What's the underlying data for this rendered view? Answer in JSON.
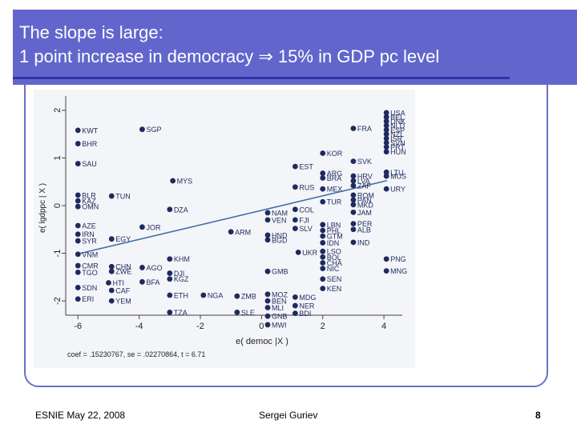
{
  "slide": {
    "title_line1": "The slope is large:",
    "title_line2": "1 point increase in democracy ⇒ 15% in GDP pc level",
    "footer_left": "ESNIE May 22, 2008",
    "footer_center": "Sergei Guriev",
    "page_number": "8"
  },
  "colors": {
    "title_bg": "#6266cc",
    "marker": "#1f2a5e",
    "fit_line": "#3f6fa8"
  },
  "chart_data": {
    "type": "scatter",
    "title": "",
    "xlabel": "e( democ |X )",
    "ylabel": "e( lgdppc | X )",
    "xlim": [
      -6.4,
      4.6
    ],
    "ylim": [
      -2.3,
      2.3
    ],
    "x_ticks": [
      -6,
      -4,
      -2,
      0,
      2,
      4
    ],
    "y_ticks": [
      -2,
      -1,
      0,
      1,
      2
    ],
    "grid": false,
    "note": "coef = .15230767, se = .02270864, t = 6.71",
    "fit": {
      "intercept": -0.1,
      "slope": 0.1523
    },
    "points": [
      {
        "x": 4.08,
        "y": 1.95,
        "label": "USA"
      },
      {
        "x": 4.08,
        "y": 1.86,
        "label": "BEL"
      },
      {
        "x": 4.08,
        "y": 1.77,
        "label": "DNK"
      },
      {
        "x": 4.08,
        "y": 1.68,
        "label": "NLD"
      },
      {
        "x": 4.08,
        "y": 1.59,
        "label": "ESP"
      },
      {
        "x": 4.08,
        "y": 1.5,
        "label": "NZL"
      },
      {
        "x": 4.08,
        "y": 1.41,
        "label": "ISR"
      },
      {
        "x": 4.08,
        "y": 1.32,
        "label": "SVN"
      },
      {
        "x": 4.08,
        "y": 1.23,
        "label": "PRT"
      },
      {
        "x": 4.08,
        "y": 1.13,
        "label": "HUN"
      },
      {
        "x": 4.08,
        "y": 0.7,
        "label": "LTU"
      },
      {
        "x": 4.08,
        "y": 0.62,
        "label": "MUS"
      },
      {
        "x": 4.08,
        "y": 0.35,
        "label": "URY"
      },
      {
        "x": 4.08,
        "y": -1.12,
        "label": "PNG"
      },
      {
        "x": 4.08,
        "y": -1.37,
        "label": "MNG"
      },
      {
        "x": 3.0,
        "y": 1.62,
        "label": "FRA"
      },
      {
        "x": 3.0,
        "y": 0.93,
        "label": "SVK"
      },
      {
        "x": 3.0,
        "y": 0.62,
        "label": "HRV"
      },
      {
        "x": 3.0,
        "y": 0.52,
        "label": "LVA"
      },
      {
        "x": 3.0,
        "y": 0.42,
        "label": "ZAF"
      },
      {
        "x": 3.0,
        "y": 0.22,
        "label": "ROM"
      },
      {
        "x": 3.0,
        "y": 0.12,
        "label": "PAN"
      },
      {
        "x": 3.0,
        "y": 0.02,
        "label": "MKD"
      },
      {
        "x": 3.0,
        "y": -0.14,
        "label": "JAM"
      },
      {
        "x": 3.0,
        "y": -0.38,
        "label": "PER"
      },
      {
        "x": 3.0,
        "y": -0.5,
        "label": "ALB"
      },
      {
        "x": 3.0,
        "y": -0.77,
        "label": "IND"
      },
      {
        "x": 2.0,
        "y": 1.1,
        "label": "KOR"
      },
      {
        "x": 2.0,
        "y": 0.68,
        "label": "ARG"
      },
      {
        "x": 2.0,
        "y": 0.58,
        "label": "BRA"
      },
      {
        "x": 2.0,
        "y": 0.35,
        "label": "MEX"
      },
      {
        "x": 2.0,
        "y": 0.08,
        "label": "TUR"
      },
      {
        "x": 2.0,
        "y": -0.4,
        "label": "LBN"
      },
      {
        "x": 2.0,
        "y": -0.52,
        "label": "PHL"
      },
      {
        "x": 2.0,
        "y": -0.64,
        "label": "GTM"
      },
      {
        "x": 2.0,
        "y": -0.78,
        "label": "IDN"
      },
      {
        "x": 2.0,
        "y": -0.96,
        "label": "LSO"
      },
      {
        "x": 2.0,
        "y": -1.08,
        "label": "BOL"
      },
      {
        "x": 2.0,
        "y": -1.2,
        "label": "CHA"
      },
      {
        "x": 2.0,
        "y": -1.32,
        "label": "NIC"
      },
      {
        "x": 2.0,
        "y": -1.54,
        "label": "SEN"
      },
      {
        "x": 2.0,
        "y": -1.74,
        "label": "KEN"
      },
      {
        "x": 1.1,
        "y": 0.82,
        "label": "EST"
      },
      {
        "x": 1.1,
        "y": 0.39,
        "label": "RUS"
      },
      {
        "x": 1.1,
        "y": -0.08,
        "label": "COL"
      },
      {
        "x": 1.1,
        "y": -0.3,
        "label": "FJI"
      },
      {
        "x": 1.1,
        "y": -0.48,
        "label": "SLV"
      },
      {
        "x": 1.2,
        "y": -0.98,
        "label": "UKR"
      },
      {
        "x": 1.1,
        "y": -1.92,
        "label": "MDG"
      },
      {
        "x": 1.1,
        "y": -2.1,
        "label": "NER"
      },
      {
        "x": 1.1,
        "y": -2.26,
        "label": "BDI"
      },
      {
        "x": 0.2,
        "y": -0.15,
        "label": "NAM"
      },
      {
        "x": 0.2,
        "y": -0.3,
        "label": "VEN"
      },
      {
        "x": 0.2,
        "y": -0.62,
        "label": "HND"
      },
      {
        "x": 0.2,
        "y": -0.72,
        "label": "BGD"
      },
      {
        "x": 0.2,
        "y": -1.38,
        "label": "GMB"
      },
      {
        "x": 0.2,
        "y": -1.86,
        "label": "MOZ"
      },
      {
        "x": 0.2,
        "y": -2.0,
        "label": "BEN"
      },
      {
        "x": 0.2,
        "y": -2.14,
        "label": "MLI"
      },
      {
        "x": 0.2,
        "y": -2.32,
        "label": "GNB"
      },
      {
        "x": 0.2,
        "y": -2.5,
        "label": "MWI"
      },
      {
        "x": -1.0,
        "y": -0.55,
        "label": "ARM"
      },
      {
        "x": -0.8,
        "y": -1.9,
        "label": "ZMB"
      },
      {
        "x": -0.8,
        "y": -2.24,
        "label": "SLE"
      },
      {
        "x": -1.9,
        "y": -1.88,
        "label": "NGA"
      },
      {
        "x": -2.9,
        "y": 0.52,
        "label": "MYS"
      },
      {
        "x": -3.9,
        "y": 1.6,
        "label": "SGP"
      },
      {
        "x": -3.9,
        "y": -0.45,
        "label": "JOR"
      },
      {
        "x": -3.9,
        "y": -1.6,
        "label": "BFA"
      },
      {
        "x": -4.9,
        "y": 0.2,
        "label": "TUN"
      },
      {
        "x": -4.9,
        "y": -0.7,
        "label": "EGY"
      },
      {
        "x": -4.9,
        "y": -1.78,
        "label": "CAF"
      },
      {
        "x": -4.9,
        "y": -2.0,
        "label": "YEM"
      },
      {
        "x": -4.9,
        "y": -1.28,
        "label": "CHN"
      },
      {
        "x": -4.9,
        "y": -1.38,
        "label": "ZWE"
      },
      {
        "x": -5.0,
        "y": -1.62,
        "label": "HTI"
      },
      {
        "x": -3.0,
        "y": -0.08,
        "label": "DZA"
      },
      {
        "x": -3.0,
        "y": -1.12,
        "label": "KHM"
      },
      {
        "x": -3.0,
        "y": -1.42,
        "label": "DJI"
      },
      {
        "x": -3.0,
        "y": -1.54,
        "label": "KGZ"
      },
      {
        "x": -3.0,
        "y": -1.88,
        "label": "ETH"
      },
      {
        "x": -3.0,
        "y": -2.24,
        "label": "TZA"
      },
      {
        "x": -3.9,
        "y": -1.3,
        "label": "AGO"
      },
      {
        "x": -6.0,
        "y": 1.58,
        "label": "KWT"
      },
      {
        "x": -6.0,
        "y": 1.3,
        "label": "BHR"
      },
      {
        "x": -6.0,
        "y": 0.88,
        "label": "SAU"
      },
      {
        "x": -6.0,
        "y": 0.22,
        "label": "BLR"
      },
      {
        "x": -6.0,
        "y": 0.1,
        "label": "KAZ"
      },
      {
        "x": -6.0,
        "y": -0.02,
        "label": "OMN"
      },
      {
        "x": -6.0,
        "y": -0.42,
        "label": "AZE"
      },
      {
        "x": -6.0,
        "y": -0.6,
        "label": "IRN"
      },
      {
        "x": -6.0,
        "y": -0.74,
        "label": "SYR"
      },
      {
        "x": -6.0,
        "y": -1.02,
        "label": "VNM"
      },
      {
        "x": -6.0,
        "y": -1.26,
        "label": "CMR"
      },
      {
        "x": -6.0,
        "y": -1.4,
        "label": "TGO"
      },
      {
        "x": -6.0,
        "y": -1.72,
        "label": "SDN"
      },
      {
        "x": -6.0,
        "y": -1.96,
        "label": "ERI"
      }
    ]
  }
}
